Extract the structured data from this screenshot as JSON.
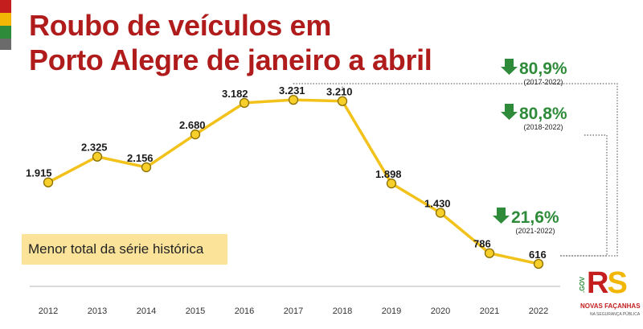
{
  "brand": {
    "stripe_colors": [
      "#c41e1e",
      "#f2b705",
      "#2e8b3a",
      "#6b6b6b"
    ],
    "logo_gov": ".GOV",
    "logo_rs": "RS",
    "logo_line1": "NOVAS FAÇANHAS",
    "logo_line2": "NA SEGURANÇA PÚBLICA"
  },
  "title": {
    "line1": "Roubo de veículos em",
    "line2": "Porto Alegre de janeiro a abril"
  },
  "highlight": {
    "label": "Menor total da série histórica"
  },
  "chart_data": {
    "type": "line",
    "categories": [
      "2012",
      "2013",
      "2014",
      "2015",
      "2016",
      "2017",
      "2018",
      "2019",
      "2020",
      "2021",
      "2022"
    ],
    "values": [
      1915,
      2325,
      2156,
      2680,
      3182,
      3231,
      3210,
      1898,
      1430,
      786,
      616
    ],
    "value_labels": [
      "1.915",
      "2.325",
      "2.156",
      "2.680",
      "3.182",
      "3.231",
      "3.210",
      "1.898",
      "1.430",
      "786",
      "616"
    ],
    "title": "",
    "xlabel": "",
    "ylabel": "",
    "grid": false,
    "line_color": "#f2c21a",
    "marker_color": "#f7cf2a",
    "annotations": [
      {
        "value": "80,9%",
        "period": "(2017-2022)",
        "from": "2017",
        "to": "2022",
        "direction": "down"
      },
      {
        "value": "80,8%",
        "period": "(2018-2022)",
        "from": "2018",
        "to": "2022",
        "direction": "down"
      },
      {
        "value": "21,6%",
        "period": "(2021-2022)",
        "from": "2021",
        "to": "2022",
        "direction": "down"
      }
    ],
    "annotation_color": "#2e8b3a"
  }
}
